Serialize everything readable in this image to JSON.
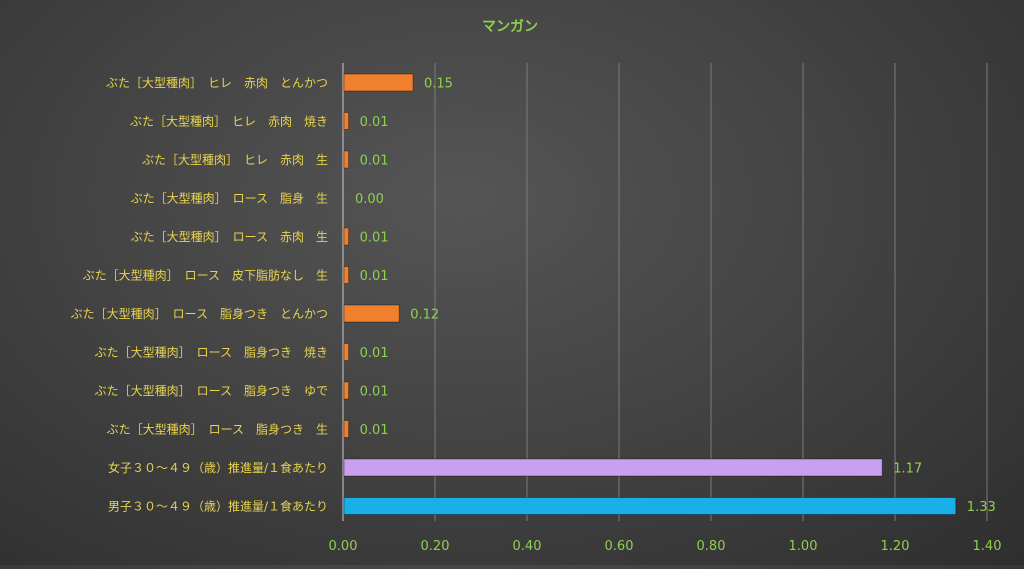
{
  "chart_data": {
    "type": "bar",
    "orientation": "horizontal",
    "title": "マンガン",
    "xlabel": "",
    "ylabel": "",
    "xlim": [
      0,
      1.4
    ],
    "x_ticks": [
      "0.00",
      "0.20",
      "0.40",
      "0.60",
      "0.80",
      "1.00",
      "1.20",
      "1.40"
    ],
    "x_tick_values": [
      0,
      0.2,
      0.4,
      0.6,
      0.8,
      1.0,
      1.2,
      1.4
    ],
    "grid": true,
    "legend": "none",
    "categories": [
      "ぶた［大型種肉］　ヒレ　赤肉　とんかつ",
      "ぶた［大型種肉］　ヒレ　赤肉　焼き",
      "ぶた［大型種肉］　ヒレ　赤肉　生",
      "ぶた［大型種肉］　ロース　脂身　生",
      "ぶた［大型種肉］　ロース　赤肉　生",
      "ぶた［大型種肉］　ロース　皮下脂肪なし　生",
      "ぶた［大型種肉］　ロース　脂身つき　とんかつ",
      "ぶた［大型種肉］　ロース　脂身つき　焼き",
      "ぶた［大型種肉］　ロース　脂身つき　ゆで",
      "ぶた［大型種肉］　ロース　脂身つき　生",
      "女子３０～４９（歳）推進量/１食あたり",
      "男子３０～４９（歳）推進量/１食あたり"
    ],
    "values": [
      0.15,
      0.01,
      0.01,
      0.0,
      0.01,
      0.01,
      0.12,
      0.01,
      0.01,
      0.01,
      1.17,
      1.33
    ],
    "value_labels": [
      "0.15",
      "0.01",
      "0.01",
      "0.00",
      "0.01",
      "0.01",
      "0.12",
      "0.01",
      "0.01",
      "0.01",
      "1.17",
      "1.33"
    ],
    "bar_colors": [
      "#f07f2e",
      "#f07f2e",
      "#f07f2e",
      "#f07f2e",
      "#f07f2e",
      "#f07f2e",
      "#f07f2e",
      "#f07f2e",
      "#f07f2e",
      "#f07f2e",
      "#c9a0f0",
      "#19b0ea"
    ],
    "colors": {
      "title": "#8fd14f",
      "category_label": "#e8d44d",
      "tick_label": "#8fd14f",
      "value_label": "#8fd14f",
      "gridline": "#7a7a7a",
      "axis": "#cccccc"
    }
  }
}
